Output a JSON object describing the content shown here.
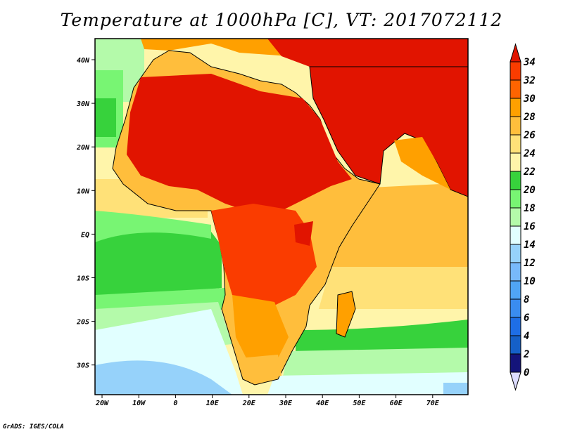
{
  "title": "Temperature at 1000hPa [C], VT: 2017072112",
  "credit": "GrADS: IGES/COLA",
  "map": {
    "variable": "Temperature",
    "level": "1000hPa",
    "units": "C",
    "valid_time": "2017072112",
    "lon_range": [
      -22,
      79.5
    ],
    "lat_range": [
      -36.5,
      45
    ]
  },
  "x_ticks": [
    "20W",
    "10W",
    "0",
    "10E",
    "20E",
    "30E",
    "40E",
    "50E",
    "60E",
    "70E"
  ],
  "y_ticks": [
    "40N",
    "30N",
    "20N",
    "10N",
    "EQ",
    "10S",
    "20S",
    "30S"
  ],
  "colorbar": {
    "levels": [
      "0",
      "2",
      "4",
      "6",
      "8",
      "10",
      "12",
      "14",
      "16",
      "18",
      "20",
      "22",
      "24",
      "26",
      "28",
      "30",
      "32",
      "34"
    ],
    "colors": [
      "#dcdcff",
      "#14147a",
      "#1560c8",
      "#1e6ee6",
      "#3a8cf0",
      "#50a5f5",
      "#78b9fa",
      "#96d2fa",
      "#e1ffff",
      "#b4faaa",
      "#78f573",
      "#37d23c",
      "#fff5aa",
      "#ffe178",
      "#ffbe3c",
      "#ffa000",
      "#ff6400",
      "#fa3c00",
      "#e11400"
    ]
  }
}
